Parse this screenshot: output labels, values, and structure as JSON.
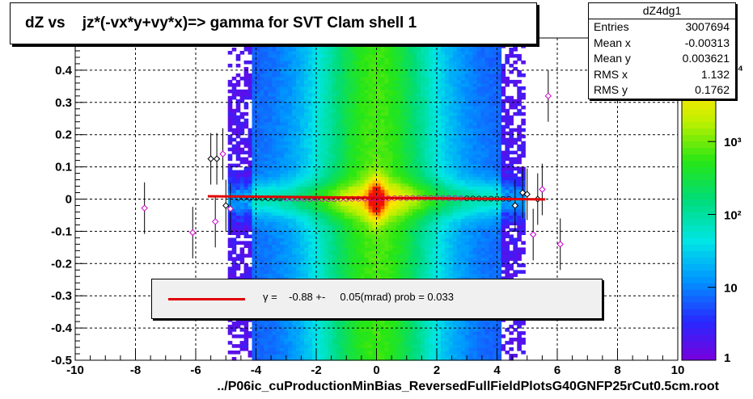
{
  "title": "dZ vs    jz*(-vx*y+vy*x)=> gamma for SVT Clam shell 1",
  "stats": {
    "name": "dZ4dg1",
    "rows": [
      {
        "key": "Entries",
        "value": "3007694"
      },
      {
        "key": "Mean x",
        "value": "-0.00313"
      },
      {
        "key": "Mean y",
        "value": "0.003621"
      },
      {
        "key": "RMS x",
        "value": "1.132"
      },
      {
        "key": "RMS y",
        "value": "0.1762"
      }
    ]
  },
  "legend": {
    "text": "γ =    -0.88 +-     0.05(mrad) prob = 0.033",
    "color": "#e00000"
  },
  "chart_data": {
    "type": "heatmap",
    "xlabel": "../P06ic_cuProductionMinBias_ReversedFullFieldPlotsG40GNFP25rCut0.5cm.root",
    "xlim": [
      -10,
      10
    ],
    "ylim": [
      -0.5,
      0.5
    ],
    "x_ticks": [
      "-10",
      "-8",
      "-6",
      "-4",
      "-2",
      "0",
      "2",
      "4",
      "6",
      "8",
      "10"
    ],
    "y_ticks": [
      "-0.5",
      "-0.4",
      "-0.3",
      "-0.2",
      "-0.1",
      "0",
      "0.1",
      "0.2",
      "0.3",
      "0.4"
    ],
    "z_scale": "log",
    "z_ticks": [
      "1",
      "10",
      "10²",
      "10³",
      "10⁴"
    ],
    "grid": true,
    "profile_points": [
      {
        "x": -7.7,
        "y": -0.028,
        "color": "magenta"
      },
      {
        "x": -6.1,
        "y": -0.104,
        "color": "magenta"
      },
      {
        "x": -5.5,
        "y": 0.125,
        "color": "black"
      },
      {
        "x": -5.3,
        "y": 0.125,
        "color": "black"
      },
      {
        "x": -5.35,
        "y": -0.07,
        "color": "magenta"
      },
      {
        "x": -5.1,
        "y": 0.14,
        "color": "magenta"
      },
      {
        "x": -5.0,
        "y": -0.02,
        "color": "black"
      },
      {
        "x": -4.85,
        "y": -0.03,
        "color": "magenta"
      },
      {
        "x": 4.6,
        "y": -0.02,
        "color": "black"
      },
      {
        "x": 4.85,
        "y": 0.02,
        "color": "black"
      },
      {
        "x": 5.0,
        "y": 0.015,
        "color": "black"
      },
      {
        "x": 5.2,
        "y": -0.11,
        "color": "magenta"
      },
      {
        "x": 5.5,
        "y": 0.03,
        "color": "magenta"
      },
      {
        "x": 5.35,
        "y": 0.0,
        "color": "black"
      },
      {
        "x": 5.7,
        "y": 0.32,
        "color": "magenta"
      },
      {
        "x": 6.1,
        "y": -0.14,
        "color": "magenta"
      }
    ],
    "fit": {
      "slope_mrad": -0.88,
      "error_mrad": 0.05,
      "prob": 0.033,
      "x_range": [
        -5.6,
        5.6
      ]
    }
  }
}
